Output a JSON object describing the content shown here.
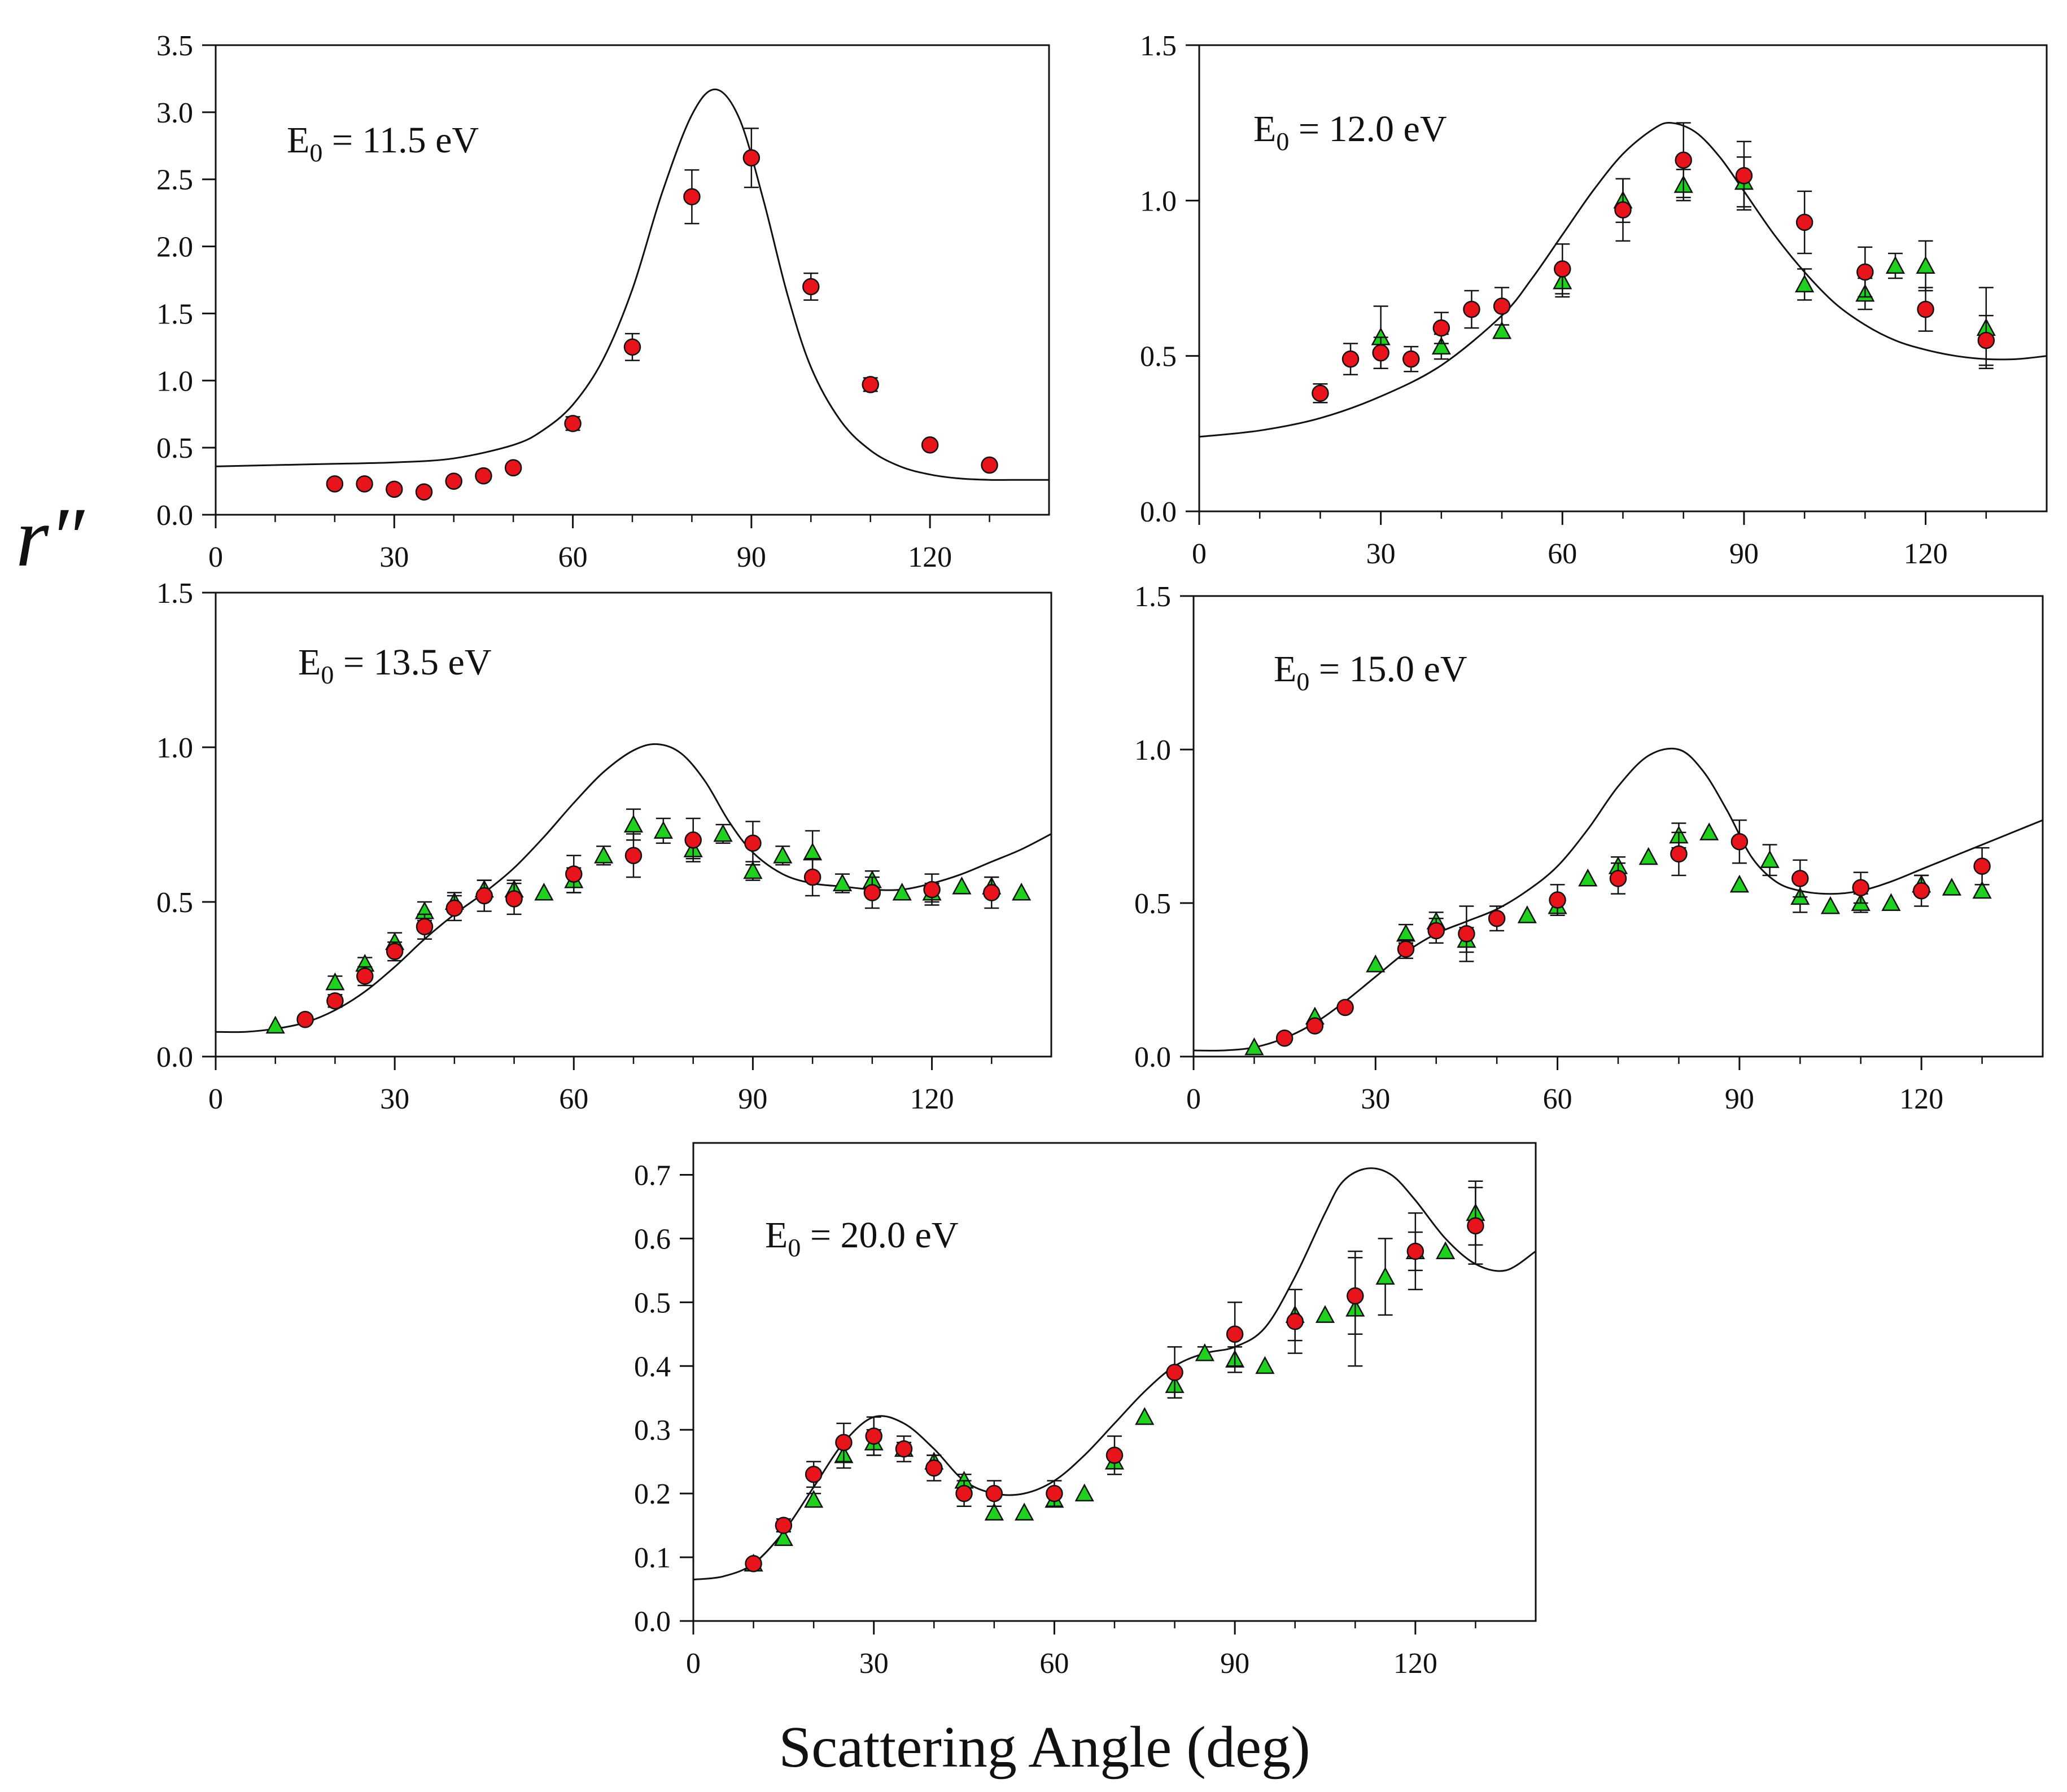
{
  "figure": {
    "y_axis_title": "r″",
    "x_axis_title": "Scattering Angle (deg)"
  },
  "colors": {
    "circle_fill": "#e8141c",
    "triangle_fill": "#1fd01f",
    "marker_stroke": "#111111",
    "curve": "#111111",
    "axes": "#111111"
  },
  "chart_data": [
    {
      "type": "scatter",
      "energy_label": {
        "prefix": "E",
        "subscript": "0",
        "suffix": " = 11.5 eV"
      },
      "xlim": [
        0,
        140
      ],
      "ylim": [
        0,
        3.5
      ],
      "x_ticks": [
        "0",
        "30",
        "60",
        "90",
        "120"
      ],
      "y_ticks": [
        "0.0",
        "0.5",
        "1.0",
        "1.5",
        "2.0",
        "2.5",
        "3.0",
        "3.5"
      ],
      "series": [
        {
          "name": "experiment-circles",
          "marker": "circle",
          "x": [
            20,
            25,
            30,
            35,
            40,
            45,
            50,
            60,
            70,
            80,
            90,
            100,
            110,
            120,
            130
          ],
          "y": [
            0.23,
            0.23,
            0.19,
            0.17,
            0.25,
            0.29,
            0.35,
            0.68,
            1.25,
            2.37,
            2.66,
            1.7,
            0.97,
            0.52,
            0.37
          ],
          "err": [
            0,
            0,
            0,
            0,
            0,
            0,
            0.03,
            0.05,
            0.1,
            0.2,
            0.22,
            0.1,
            0.05,
            0,
            0
          ]
        }
      ],
      "theory_curve": {
        "x": [
          0,
          10,
          20,
          30,
          40,
          50,
          55,
          60,
          65,
          70,
          75,
          80,
          84,
          88,
          92,
          96,
          100,
          105,
          110,
          115,
          120,
          125,
          130,
          135,
          140
        ],
        "y": [
          0.36,
          0.37,
          0.38,
          0.39,
          0.42,
          0.52,
          0.63,
          0.82,
          1.15,
          1.68,
          2.4,
          2.98,
          3.17,
          2.95,
          2.35,
          1.65,
          1.1,
          0.7,
          0.48,
          0.36,
          0.3,
          0.27,
          0.26,
          0.26,
          0.26
        ]
      }
    },
    {
      "type": "scatter",
      "energy_label": {
        "prefix": "E",
        "subscript": "0",
        "suffix": " = 12.0 eV"
      },
      "xlim": [
        0,
        140
      ],
      "ylim": [
        0,
        1.5
      ],
      "x_ticks": [
        "0",
        "30",
        "60",
        "90",
        "120"
      ],
      "y_ticks": [
        "0.0",
        "0.5",
        "1.0",
        "1.5"
      ],
      "series": [
        {
          "name": "experiment-circles",
          "marker": "circle",
          "x": [
            20,
            25,
            30,
            35,
            40,
            45,
            50,
            60,
            70,
            80,
            90,
            100,
            110,
            120,
            130
          ],
          "y": [
            0.38,
            0.49,
            0.51,
            0.49,
            0.59,
            0.65,
            0.66,
            0.78,
            0.97,
            1.13,
            1.08,
            0.93,
            0.77,
            0.65,
            0.55
          ],
          "err": [
            0.03,
            0.05,
            0.05,
            0.04,
            0.05,
            0.06,
            0.06,
            0.08,
            0.1,
            0.12,
            0.11,
            0.1,
            0.08,
            0.07,
            0.08
          ]
        },
        {
          "name": "experiment-triangles",
          "marker": "triangle",
          "x": [
            30,
            40,
            50,
            60,
            70,
            80,
            90,
            100,
            110,
            115,
            120,
            130
          ],
          "y": [
            0.56,
            0.53,
            0.58,
            0.74,
            1.0,
            1.05,
            1.06,
            0.73,
            0.7,
            0.79,
            0.79,
            0.59
          ],
          "err": [
            0.1,
            0.04,
            0,
            0.05,
            0.07,
            0.05,
            0.08,
            0.05,
            0.05,
            0.04,
            0.08,
            0.13
          ]
        }
      ],
      "theory_curve": {
        "x": [
          0,
          10,
          20,
          30,
          40,
          50,
          55,
          60,
          65,
          70,
          75,
          78,
          82,
          86,
          90,
          95,
          100,
          105,
          110,
          115,
          120,
          125,
          130,
          135,
          140
        ],
        "y": [
          0.24,
          0.26,
          0.3,
          0.37,
          0.47,
          0.63,
          0.75,
          0.89,
          1.03,
          1.15,
          1.23,
          1.25,
          1.22,
          1.14,
          1.03,
          0.89,
          0.77,
          0.67,
          0.6,
          0.55,
          0.52,
          0.5,
          0.49,
          0.49,
          0.5
        ]
      }
    },
    {
      "type": "scatter",
      "energy_label": {
        "prefix": "E",
        "subscript": "0",
        "suffix": " = 13.5 eV"
      },
      "xlim": [
        0,
        140
      ],
      "ylim": [
        0,
        1.5
      ],
      "x_ticks": [
        "0",
        "30",
        "60",
        "90",
        "120"
      ],
      "y_ticks": [
        "0.0",
        "0.5",
        "1.0",
        "1.5"
      ],
      "series": [
        {
          "name": "experiment-circles",
          "marker": "circle",
          "x": [
            15,
            20,
            25,
            30,
            35,
            40,
            45,
            50,
            60,
            70,
            80,
            90,
            100,
            110,
            120,
            130
          ],
          "y": [
            0.12,
            0.18,
            0.26,
            0.34,
            0.42,
            0.48,
            0.52,
            0.51,
            0.59,
            0.65,
            0.7,
            0.69,
            0.58,
            0.53,
            0.54,
            0.53
          ],
          "err": [
            0,
            0.02,
            0.03,
            0.03,
            0.04,
            0.04,
            0.05,
            0.05,
            0.06,
            0.07,
            0.07,
            0.07,
            0.06,
            0.05,
            0.05,
            0.05
          ]
        },
        {
          "name": "experiment-triangles",
          "marker": "triangle",
          "x": [
            10,
            20,
            25,
            30,
            35,
            40,
            45,
            50,
            55,
            60,
            65,
            70,
            75,
            80,
            85,
            90,
            95,
            100,
            105,
            110,
            115,
            120,
            125,
            130,
            135
          ],
          "y": [
            0.1,
            0.24,
            0.3,
            0.37,
            0.47,
            0.5,
            0.54,
            0.54,
            0.53,
            0.57,
            0.65,
            0.75,
            0.73,
            0.67,
            0.72,
            0.6,
            0.65,
            0.66,
            0.56,
            0.57,
            0.53,
            0.53,
            0.55,
            0.55,
            0.53
          ],
          "err": [
            0,
            0.02,
            0.02,
            0.03,
            0.03,
            0.03,
            0.03,
            0.03,
            0,
            0.04,
            0.03,
            0.05,
            0.04,
            0.03,
            0.03,
            0.03,
            0.03,
            0.07,
            0.03,
            0.03,
            0,
            0.03,
            0,
            0.03,
            0
          ]
        }
      ],
      "theory_curve": {
        "x": [
          0,
          5,
          10,
          15,
          20,
          25,
          30,
          35,
          40,
          45,
          50,
          55,
          60,
          65,
          70,
          74,
          78,
          82,
          86,
          90,
          95,
          100,
          105,
          110,
          115,
          120,
          125,
          130,
          135,
          140
        ],
        "y": [
          0.08,
          0.08,
          0.09,
          0.11,
          0.15,
          0.21,
          0.29,
          0.38,
          0.46,
          0.53,
          0.61,
          0.71,
          0.82,
          0.92,
          0.99,
          1.01,
          0.98,
          0.89,
          0.76,
          0.66,
          0.59,
          0.56,
          0.55,
          0.54,
          0.54,
          0.56,
          0.59,
          0.63,
          0.67,
          0.72
        ]
      }
    },
    {
      "type": "scatter",
      "energy_label": {
        "prefix": "E",
        "subscript": "0",
        "suffix": " = 15.0 eV"
      },
      "xlim": [
        0,
        140
      ],
      "ylim": [
        0,
        1.5
      ],
      "x_ticks": [
        "0",
        "30",
        "60",
        "90",
        "120"
      ],
      "y_ticks": [
        "0.0",
        "0.5",
        "1.0",
        "1.5"
      ],
      "series": [
        {
          "name": "experiment-circles",
          "marker": "circle",
          "x": [
            15,
            20,
            25,
            35,
            40,
            45,
            50,
            60,
            70,
            80,
            90,
            100,
            110,
            120,
            130
          ],
          "y": [
            0.06,
            0.1,
            0.16,
            0.35,
            0.41,
            0.4,
            0.45,
            0.51,
            0.58,
            0.66,
            0.7,
            0.58,
            0.55,
            0.54,
            0.62
          ],
          "err": [
            0,
            0,
            0,
            0.03,
            0.04,
            0.09,
            0.04,
            0.05,
            0.05,
            0.07,
            0.07,
            0.06,
            0.05,
            0.05,
            0.06
          ]
        },
        {
          "name": "experiment-triangles",
          "marker": "triangle",
          "x": [
            10,
            20,
            30,
            35,
            40,
            45,
            55,
            60,
            65,
            70,
            75,
            80,
            85,
            90,
            95,
            100,
            105,
            110,
            115,
            120,
            125,
            130
          ],
          "y": [
            0.03,
            0.13,
            0.3,
            0.4,
            0.44,
            0.38,
            0.46,
            0.49,
            0.58,
            0.62,
            0.65,
            0.72,
            0.73,
            0.56,
            0.64,
            0.52,
            0.49,
            0.5,
            0.5,
            0.56,
            0.55,
            0.54
          ],
          "err": [
            0,
            0,
            0,
            0.03,
            0.03,
            0.04,
            0,
            0.03,
            0,
            0.03,
            0,
            0.04,
            0,
            0,
            0.05,
            0.05,
            0,
            0.03,
            0,
            0.03,
            0,
            0
          ]
        }
      ],
      "theory_curve": {
        "x": [
          0,
          5,
          10,
          15,
          20,
          25,
          30,
          35,
          40,
          45,
          50,
          55,
          60,
          65,
          70,
          75,
          80,
          84,
          88,
          92,
          96,
          100,
          105,
          110,
          115,
          120,
          125,
          130,
          135,
          140
        ],
        "y": [
          0.02,
          0.02,
          0.03,
          0.06,
          0.11,
          0.18,
          0.26,
          0.34,
          0.4,
          0.44,
          0.48,
          0.54,
          0.62,
          0.74,
          0.88,
          0.98,
          1.0,
          0.93,
          0.8,
          0.65,
          0.57,
          0.54,
          0.53,
          0.54,
          0.57,
          0.61,
          0.65,
          0.69,
          0.73,
          0.77
        ]
      }
    },
    {
      "type": "scatter",
      "energy_label": {
        "prefix": "E",
        "subscript": "0",
        "suffix": " = 20.0 eV"
      },
      "xlim": [
        0,
        140
      ],
      "ylim": [
        0,
        0.75
      ],
      "x_ticks": [
        "0",
        "30",
        "60",
        "90",
        "120"
      ],
      "y_ticks": [
        "0.0",
        "0.1",
        "0.2",
        "0.3",
        "0.4",
        "0.5",
        "0.6",
        "0.7"
      ],
      "series": [
        {
          "name": "experiment-circles",
          "marker": "circle",
          "x": [
            10,
            15,
            20,
            25,
            30,
            35,
            40,
            45,
            50,
            60,
            70,
            80,
            90,
            100,
            110,
            120,
            130
          ],
          "y": [
            0.09,
            0.15,
            0.23,
            0.28,
            0.29,
            0.27,
            0.24,
            0.2,
            0.2,
            0.2,
            0.26,
            0.39,
            0.45,
            0.47,
            0.51,
            0.58,
            0.62
          ],
          "err": [
            0,
            0.01,
            0.02,
            0.03,
            0.03,
            0.02,
            0.02,
            0.02,
            0.02,
            0.02,
            0.03,
            0.04,
            0.05,
            0.05,
            0.06,
            0.06,
            0.06
          ]
        },
        {
          "name": "experiment-triangles",
          "marker": "triangle",
          "x": [
            10,
            15,
            20,
            25,
            30,
            35,
            40,
            45,
            50,
            55,
            60,
            65,
            70,
            75,
            80,
            85,
            90,
            95,
            100,
            105,
            110,
            115,
            120,
            125,
            130
          ],
          "y": [
            0.09,
            0.13,
            0.19,
            0.26,
            0.28,
            0.27,
            0.25,
            0.22,
            0.17,
            0.17,
            0.19,
            0.2,
            0.25,
            0.32,
            0.37,
            0.42,
            0.41,
            0.4,
            0.48,
            0.48,
            0.49,
            0.54,
            0.58,
            0.58,
            0.64
          ],
          "err": [
            0,
            0.01,
            0.01,
            0.02,
            0.02,
            0.01,
            0.01,
            0.01,
            0.01,
            0,
            0.01,
            0,
            0.01,
            0,
            0.02,
            0.01,
            0.02,
            0,
            0.04,
            0,
            0.09,
            0.06,
            0.03,
            0,
            0.05
          ]
        }
      ],
      "theory_curve": {
        "x": [
          0,
          5,
          10,
          15,
          20,
          25,
          30,
          35,
          40,
          45,
          50,
          55,
          60,
          65,
          70,
          75,
          80,
          85,
          90,
          95,
          100,
          105,
          108,
          112,
          116,
          120,
          125,
          130,
          135,
          140
        ],
        "y": [
          0.065,
          0.07,
          0.09,
          0.14,
          0.21,
          0.28,
          0.32,
          0.31,
          0.27,
          0.22,
          0.2,
          0.2,
          0.22,
          0.26,
          0.31,
          0.36,
          0.4,
          0.42,
          0.43,
          0.46,
          0.54,
          0.64,
          0.69,
          0.71,
          0.7,
          0.66,
          0.6,
          0.56,
          0.55,
          0.58
        ]
      }
    }
  ]
}
